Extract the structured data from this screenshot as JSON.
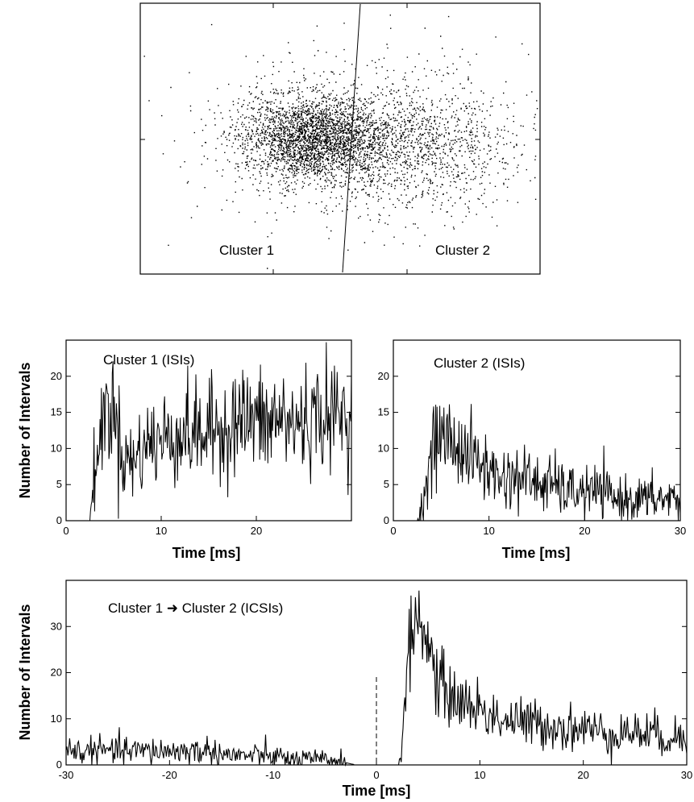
{
  "chart_data": [
    {
      "type": "scatter",
      "title": "",
      "annotations": [
        "Cluster 1",
        "Cluster 2"
      ],
      "separator_line": "boundary between clusters",
      "xlabel": "",
      "ylabel": "",
      "grid": false
    },
    {
      "type": "line",
      "title": "Cluster 1 (ISIs)",
      "xlabel": "Time [ms]",
      "ylabel": "Number of Intervals",
      "xlim": [
        0,
        30
      ],
      "ylim": [
        0,
        25
      ],
      "xticks": [
        0,
        10,
        20
      ],
      "yticks": [
        0,
        5,
        10,
        15,
        20
      ],
      "x": [
        2.5,
        3.0,
        3.5,
        4.0,
        4.5,
        5.0,
        6.0,
        7.0,
        8.0,
        9.0,
        10.0,
        11.0,
        12.0,
        13.0,
        14.0,
        15.0,
        16.0,
        17.0,
        18.0,
        19.0,
        20.0,
        21.0,
        22.0,
        23.0,
        24.0,
        25.0,
        26.0,
        27.0,
        28.0,
        29.0,
        29.5
      ],
      "y": [
        0,
        7,
        10,
        15,
        16,
        15,
        9,
        8,
        10,
        11,
        11,
        12,
        12,
        12,
        12,
        12,
        13,
        13,
        14,
        14,
        14,
        13,
        14,
        14,
        13,
        14,
        14,
        15,
        14,
        15,
        14
      ],
      "grid": false
    },
    {
      "type": "line",
      "title": "Cluster 2 (ISIs)",
      "xlabel": "Time [ms]",
      "ylabel": "",
      "xlim": [
        0,
        30
      ],
      "ylim": [
        0,
        25
      ],
      "xticks": [
        0,
        10,
        20,
        30
      ],
      "yticks": [
        0,
        5,
        10,
        15,
        20
      ],
      "x": [
        2.5,
        3.0,
        3.5,
        4.0,
        4.5,
        5.0,
        6.0,
        7.0,
        8.0,
        9.0,
        10.0,
        11.0,
        12.0,
        13.0,
        14.0,
        15.0,
        16.0,
        17.0,
        18.0,
        19.0,
        20.0,
        21.0,
        22.0,
        23.0,
        24.0,
        25.0,
        26.0,
        27.0,
        28.0,
        29.0,
        30.0
      ],
      "y": [
        0,
        2,
        5,
        9,
        11,
        12,
        11,
        10,
        9,
        8,
        7,
        6,
        6,
        6,
        6,
        5,
        5,
        5,
        4,
        4,
        4,
        4,
        4,
        3,
        3,
        3,
        3,
        3,
        3,
        3,
        3
      ],
      "grid": false
    },
    {
      "type": "line",
      "title": "Cluster 1 ➜ Cluster 2    (ICSIs)",
      "xlabel": "Time [ms]",
      "ylabel": "Number of Intervals",
      "xlim": [
        -30,
        30
      ],
      "ylim": [
        0,
        40
      ],
      "xticks": [
        -30,
        -20,
        -10,
        0,
        10,
        20,
        30
      ],
      "yticks": [
        0,
        10,
        20,
        30
      ],
      "x": [
        -30,
        -28,
        -26,
        -24,
        -22,
        -20,
        -18,
        -16,
        -14,
        -12,
        -10,
        -8,
        -6,
        -4,
        -2,
        0,
        1,
        2,
        2.5,
        3,
        3.5,
        4,
        4.5,
        5,
        6,
        7,
        8,
        9,
        10,
        12,
        14,
        16,
        18,
        20,
        22,
        24,
        26,
        28,
        30
      ],
      "y": [
        3,
        3,
        3,
        3,
        3,
        3,
        3,
        3,
        2,
        2,
        2,
        1,
        1,
        1,
        0,
        0,
        0,
        0,
        5,
        20,
        30,
        32,
        31,
        25,
        18,
        15,
        14,
        13,
        12,
        10,
        9,
        9,
        8,
        8,
        7,
        7,
        7,
        6,
        6
      ],
      "zero_marker": "dashed vertical line at 0",
      "grid": false
    }
  ]
}
